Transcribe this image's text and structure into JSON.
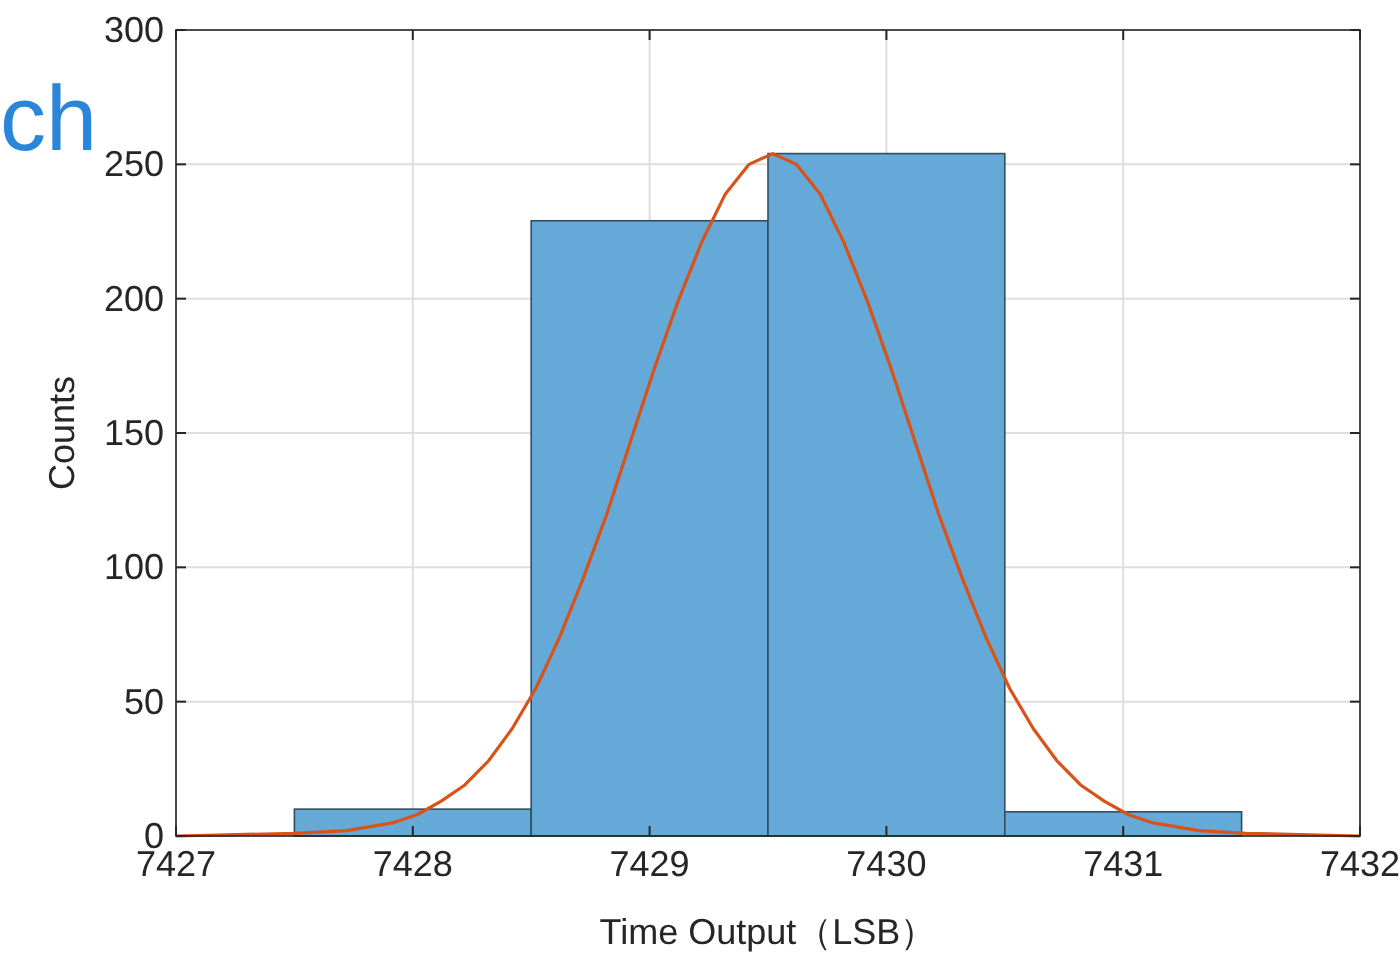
{
  "chart_data": {
    "type": "histogram",
    "xlabel": "Time Output（LSB）",
    "ylabel": "Counts",
    "bins": [
      7427.5,
      7428.5,
      7429.5,
      7430.5,
      7431.5
    ],
    "values": [
      10,
      229,
      254,
      9
    ],
    "color": "#64a9d7",
    "series": [
      {
        "type": "line",
        "color": "#d95319",
        "x": [
          7427.0,
          7427.5,
          7427.72,
          7427.92,
          7428.02,
          7428.12,
          7428.22,
          7428.32,
          7428.42,
          7428.52,
          7428.62,
          7428.72,
          7428.82,
          7428.92,
          7429.02,
          7429.12,
          7429.22,
          7429.32,
          7429.42,
          7429.52,
          7429.62,
          7429.72,
          7429.82,
          7429.92,
          7430.02,
          7430.12,
          7430.22,
          7430.32,
          7430.42,
          7430.52,
          7430.62,
          7430.72,
          7430.82,
          7430.92,
          7431.02,
          7431.12,
          7431.32,
          7431.52,
          7432.0
        ],
        "values": [
          0,
          1,
          2,
          5,
          8,
          13,
          19,
          28,
          40,
          55,
          74,
          96,
          120,
          147,
          174,
          199,
          221,
          239,
          250,
          254,
          250,
          239,
          221,
          199,
          174,
          147,
          120,
          96,
          74,
          55,
          40,
          28,
          19,
          13,
          8,
          5,
          2,
          1,
          0
        ]
      }
    ],
    "xlim": [
      7427,
      7432
    ],
    "ylim": [
      0,
      300
    ],
    "xticks": [
      7427,
      7428,
      7429,
      7430,
      7431,
      7432
    ],
    "yticks": [
      0,
      50,
      100,
      150,
      200,
      250,
      300
    ],
    "grid": true,
    "annotations": [
      "ch"
    ]
  }
}
